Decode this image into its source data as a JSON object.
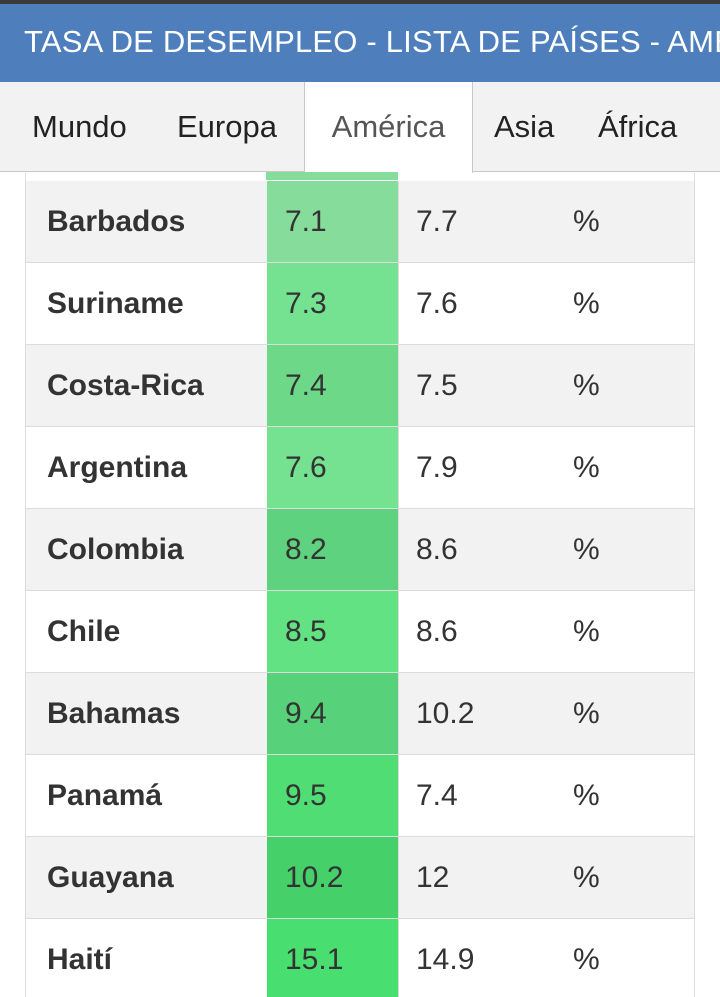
{
  "header": {
    "title": "TASA DE DESEMPLEO - LISTA DE PAÍSES - AMÉRICA"
  },
  "tabs": [
    {
      "label": "Mundo"
    },
    {
      "label": "Europa"
    },
    {
      "label": "América"
    },
    {
      "label": "Asia"
    },
    {
      "label": "África"
    }
  ],
  "colors": {
    "header_bg": "#4e7fbc",
    "row_alt_bg": "#f2f2f2"
  },
  "table": {
    "rows": [
      {
        "country": "Barbados",
        "rate": "7.1",
        "previous": "7.7",
        "unit": "%",
        "rate_color": "#86dc9a"
      },
      {
        "country": "Suriname",
        "rate": "7.3",
        "previous": "7.6",
        "unit": "%",
        "rate_color": "#74e290"
      },
      {
        "country": "Costa-Rica",
        "rate": "7.4",
        "previous": "7.5",
        "unit": "%",
        "rate_color": "#6cd888"
      },
      {
        "country": "Argentina",
        "rate": "7.6",
        "previous": "7.9",
        "unit": "%",
        "rate_color": "#74e290"
      },
      {
        "country": "Colombia",
        "rate": "8.2",
        "previous": "8.6",
        "unit": "%",
        "rate_color": "#5ed27e"
      },
      {
        "country": "Chile",
        "rate": "8.5",
        "previous": "8.6",
        "unit": "%",
        "rate_color": "#62e282"
      },
      {
        "country": "Bahamas",
        "rate": "9.4",
        "previous": "10.2",
        "unit": "%",
        "rate_color": "#58d27a"
      },
      {
        "country": "Panamá",
        "rate": "9.5",
        "previous": "7.4",
        "unit": "%",
        "rate_color": "#50de74"
      },
      {
        "country": "Guayana",
        "rate": "10.2",
        "previous": "12",
        "unit": "%",
        "rate_color": "#46d06a"
      },
      {
        "country": "Haití",
        "rate": "15.1",
        "previous": "14.9",
        "unit": "%",
        "rate_color": "#48de70"
      }
    ]
  }
}
